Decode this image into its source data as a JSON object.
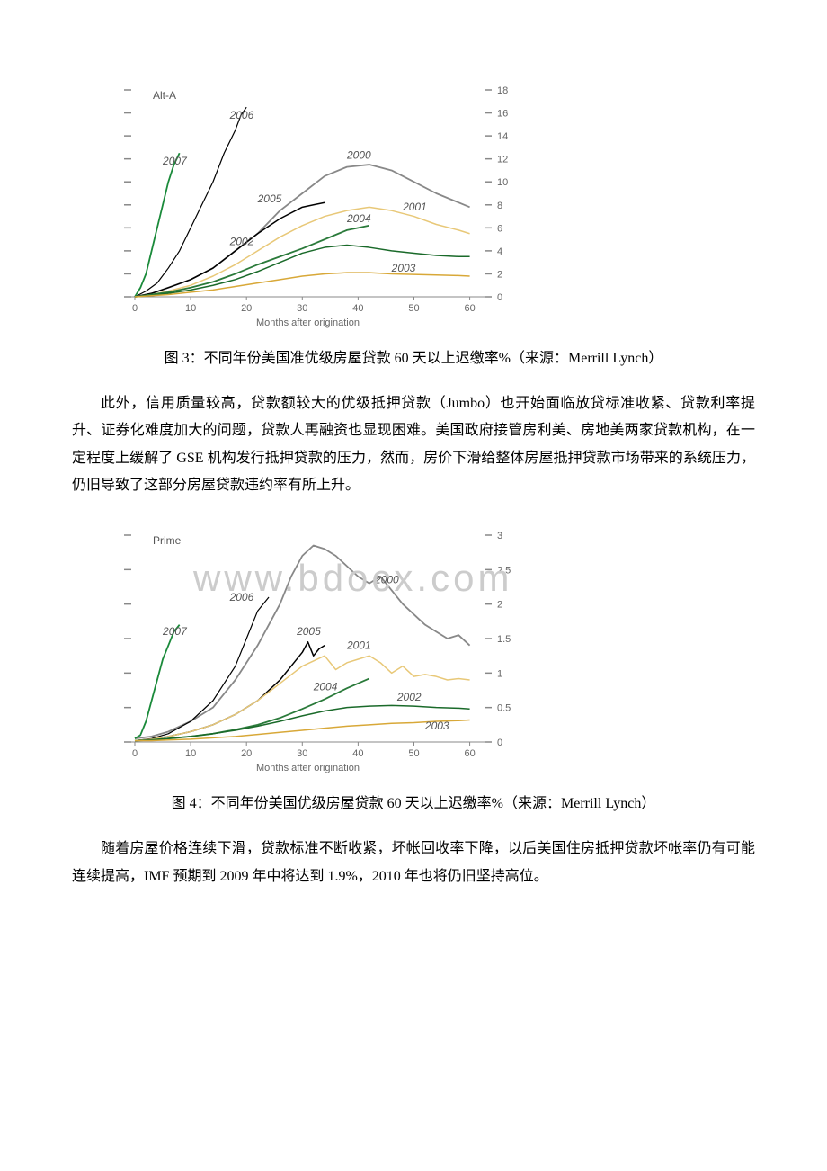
{
  "chart1": {
    "type": "line",
    "title": "Alt-A",
    "xlabel": "Months after origination",
    "xlim": [
      0,
      62
    ],
    "xticks": [
      0,
      10,
      20,
      30,
      40,
      50,
      60
    ],
    "ylim": [
      0,
      18
    ],
    "yticks": [
      0,
      2,
      4,
      6,
      8,
      10,
      12,
      14,
      16,
      18
    ],
    "background_color": "#ffffff",
    "axis_color": "#888888",
    "text_color": "#666666",
    "title_fontsize": 12,
    "label_fontsize": 11,
    "tick_fontsize": 11,
    "series": [
      {
        "label": "2006",
        "label_pos": {
          "x": 17,
          "y": 15.5
        },
        "color": "#000000",
        "width": 1.2,
        "points": [
          [
            0,
            0
          ],
          [
            2,
            0.5
          ],
          [
            4,
            1.2
          ],
          [
            6,
            2.5
          ],
          [
            8,
            4
          ],
          [
            10,
            6
          ],
          [
            12,
            8
          ],
          [
            14,
            10
          ],
          [
            16,
            12.5
          ],
          [
            18,
            14.5
          ],
          [
            19,
            15.8
          ],
          [
            20,
            16.5
          ]
        ]
      },
      {
        "label": "2007",
        "label_pos": {
          "x": 5,
          "y": 11.5
        },
        "color": "#1a8a3a",
        "width": 1.8,
        "points": [
          [
            0,
            0
          ],
          [
            1,
            0.8
          ],
          [
            2,
            2
          ],
          [
            3,
            4
          ],
          [
            4,
            6
          ],
          [
            5,
            8
          ],
          [
            6,
            10
          ],
          [
            7,
            11.5
          ],
          [
            8,
            12.5
          ]
        ]
      },
      {
        "label": "2000",
        "label_pos": {
          "x": 38,
          "y": 12
        },
        "color": "#888888",
        "width": 1.8,
        "points": [
          [
            0,
            0
          ],
          [
            3,
            0.3
          ],
          [
            6,
            0.8
          ],
          [
            10,
            1.5
          ],
          [
            14,
            2.5
          ],
          [
            18,
            4
          ],
          [
            22,
            5.5
          ],
          [
            26,
            7.5
          ],
          [
            30,
            9
          ],
          [
            34,
            10.5
          ],
          [
            38,
            11.3
          ],
          [
            42,
            11.5
          ],
          [
            46,
            11
          ],
          [
            50,
            10
          ],
          [
            54,
            9
          ],
          [
            58,
            8.2
          ],
          [
            60,
            7.8
          ]
        ]
      },
      {
        "label": "2005",
        "label_pos": {
          "x": 22,
          "y": 8.2
        },
        "color": "#000000",
        "width": 1.5,
        "points": [
          [
            0,
            0
          ],
          [
            3,
            0.3
          ],
          [
            6,
            0.8
          ],
          [
            10,
            1.5
          ],
          [
            14,
            2.5
          ],
          [
            18,
            4
          ],
          [
            22,
            5.5
          ],
          [
            26,
            6.8
          ],
          [
            30,
            7.8
          ],
          [
            32,
            8
          ],
          [
            34,
            8.2
          ]
        ]
      },
      {
        "label": "2001",
        "label_pos": {
          "x": 48,
          "y": 7.5
        },
        "color": "#e8c878",
        "width": 1.5,
        "points": [
          [
            0,
            0
          ],
          [
            3,
            0.2
          ],
          [
            6,
            0.5
          ],
          [
            10,
            1
          ],
          [
            14,
            1.8
          ],
          [
            18,
            2.8
          ],
          [
            22,
            4
          ],
          [
            26,
            5.2
          ],
          [
            30,
            6.2
          ],
          [
            34,
            7
          ],
          [
            38,
            7.5
          ],
          [
            42,
            7.8
          ],
          [
            46,
            7.5
          ],
          [
            50,
            7
          ],
          [
            54,
            6.3
          ],
          [
            58,
            5.8
          ],
          [
            60,
            5.5
          ]
        ]
      },
      {
        "label": "2004",
        "label_pos": {
          "x": 38,
          "y": 6.5
        },
        "color": "#2a7a3a",
        "width": 1.8,
        "points": [
          [
            0,
            0
          ],
          [
            3,
            0.2
          ],
          [
            6,
            0.4
          ],
          [
            10,
            0.8
          ],
          [
            14,
            1.3
          ],
          [
            18,
            2
          ],
          [
            22,
            2.8
          ],
          [
            26,
            3.5
          ],
          [
            30,
            4.2
          ],
          [
            34,
            5
          ],
          [
            38,
            5.8
          ],
          [
            40,
            6
          ],
          [
            42,
            6.2
          ]
        ]
      },
      {
        "label": "2002",
        "label_pos": {
          "x": 17,
          "y": 4.5
        },
        "color": "#1a6a2a",
        "width": 1.5,
        "points": [
          [
            0,
            0
          ],
          [
            3,
            0.1
          ],
          [
            6,
            0.3
          ],
          [
            10,
            0.6
          ],
          [
            14,
            1
          ],
          [
            18,
            1.5
          ],
          [
            22,
            2.2
          ],
          [
            26,
            3
          ],
          [
            30,
            3.8
          ],
          [
            34,
            4.3
          ],
          [
            38,
            4.5
          ],
          [
            42,
            4.3
          ],
          [
            46,
            4
          ],
          [
            50,
            3.8
          ],
          [
            54,
            3.6
          ],
          [
            58,
            3.5
          ],
          [
            60,
            3.5
          ]
        ]
      },
      {
        "label": "2003",
        "label_pos": {
          "x": 46,
          "y": 2.2
        },
        "color": "#d8a838",
        "width": 1.5,
        "points": [
          [
            0,
            0
          ],
          [
            3,
            0.1
          ],
          [
            6,
            0.2
          ],
          [
            10,
            0.4
          ],
          [
            14,
            0.6
          ],
          [
            18,
            0.9
          ],
          [
            22,
            1.2
          ],
          [
            26,
            1.5
          ],
          [
            30,
            1.8
          ],
          [
            34,
            2
          ],
          [
            38,
            2.1
          ],
          [
            42,
            2.1
          ],
          [
            46,
            2
          ],
          [
            50,
            1.95
          ],
          [
            54,
            1.9
          ],
          [
            58,
            1.85
          ],
          [
            60,
            1.8
          ]
        ]
      }
    ]
  },
  "caption1": "图 3：不同年份美国准优级房屋贷款 60 天以上迟缴率%（来源：Merrill Lynch）",
  "paragraph1": "此外，信用质量较高，贷款额较大的优级抵押贷款（Jumbo）也开始面临放贷标准收紧、贷款利率提升、证券化难度加大的问题，贷款人再融资也显现困难。美国政府接管房利美、房地美两家贷款机构，在一定程度上缓解了 GSE 机构发行抵押贷款的压力，然而，房价下滑给整体房屋抵押贷款市场带来的系统压力，仍旧导致了这部分房屋贷款违约率有所上升。",
  "chart2": {
    "type": "line",
    "title": "Prime",
    "xlabel": "Months after origination",
    "xlim": [
      0,
      62
    ],
    "xticks": [
      0,
      10,
      20,
      30,
      40,
      50,
      60
    ],
    "ylim": [
      0,
      3.0
    ],
    "yticks": [
      0,
      0.5,
      1.0,
      1.5,
      2.0,
      2.5,
      3.0
    ],
    "background_color": "#ffffff",
    "axis_color": "#888888",
    "text_color": "#666666",
    "title_fontsize": 12,
    "label_fontsize": 11,
    "tick_fontsize": 11,
    "watermark": "www.bdocx.com",
    "series": [
      {
        "label": "2000",
        "label_pos": {
          "x": 43,
          "y": 2.3
        },
        "color": "#888888",
        "width": 1.8,
        "points": [
          [
            0,
            0.05
          ],
          [
            3,
            0.08
          ],
          [
            6,
            0.15
          ],
          [
            10,
            0.3
          ],
          [
            14,
            0.5
          ],
          [
            18,
            0.9
          ],
          [
            22,
            1.4
          ],
          [
            26,
            2.0
          ],
          [
            28,
            2.4
          ],
          [
            30,
            2.7
          ],
          [
            32,
            2.85
          ],
          [
            34,
            2.8
          ],
          [
            36,
            2.7
          ],
          [
            38,
            2.55
          ],
          [
            40,
            2.4
          ],
          [
            42,
            2.3
          ],
          [
            44,
            2.4
          ],
          [
            46,
            2.2
          ],
          [
            48,
            2.0
          ],
          [
            50,
            1.85
          ],
          [
            52,
            1.7
          ],
          [
            54,
            1.6
          ],
          [
            56,
            1.5
          ],
          [
            58,
            1.55
          ],
          [
            60,
            1.4
          ]
        ]
      },
      {
        "label": "2006",
        "label_pos": {
          "x": 17,
          "y": 2.05
        },
        "color": "#000000",
        "width": 1.2,
        "points": [
          [
            0,
            0.02
          ],
          [
            3,
            0.05
          ],
          [
            6,
            0.12
          ],
          [
            10,
            0.3
          ],
          [
            14,
            0.6
          ],
          [
            18,
            1.1
          ],
          [
            20,
            1.5
          ],
          [
            22,
            1.9
          ],
          [
            24,
            2.1
          ]
        ]
      },
      {
        "label": "2007",
        "label_pos": {
          "x": 5,
          "y": 1.55
        },
        "color": "#1a8a3a",
        "width": 1.8,
        "points": [
          [
            0,
            0.05
          ],
          [
            1,
            0.1
          ],
          [
            2,
            0.3
          ],
          [
            3,
            0.6
          ],
          [
            4,
            0.9
          ],
          [
            5,
            1.2
          ],
          [
            6,
            1.4
          ],
          [
            7,
            1.6
          ],
          [
            8,
            1.7
          ]
        ]
      },
      {
        "label": "2005",
        "label_pos": {
          "x": 29,
          "y": 1.55
        },
        "color": "#000000",
        "width": 1.5,
        "points": [
          [
            0,
            0.02
          ],
          [
            3,
            0.04
          ],
          [
            6,
            0.08
          ],
          [
            10,
            0.15
          ],
          [
            14,
            0.25
          ],
          [
            18,
            0.4
          ],
          [
            22,
            0.6
          ],
          [
            26,
            0.9
          ],
          [
            28,
            1.1
          ],
          [
            30,
            1.3
          ],
          [
            31,
            1.45
          ],
          [
            32,
            1.25
          ],
          [
            33,
            1.35
          ],
          [
            34,
            1.4
          ]
        ]
      },
      {
        "label": "2001",
        "label_pos": {
          "x": 38,
          "y": 1.35
        },
        "color": "#e8c878",
        "width": 1.5,
        "points": [
          [
            0,
            0.02
          ],
          [
            3,
            0.04
          ],
          [
            6,
            0.08
          ],
          [
            10,
            0.15
          ],
          [
            14,
            0.25
          ],
          [
            18,
            0.4
          ],
          [
            22,
            0.6
          ],
          [
            26,
            0.85
          ],
          [
            30,
            1.1
          ],
          [
            34,
            1.25
          ],
          [
            36,
            1.05
          ],
          [
            38,
            1.15
          ],
          [
            40,
            1.2
          ],
          [
            42,
            1.25
          ],
          [
            44,
            1.15
          ],
          [
            46,
            1.0
          ],
          [
            48,
            1.1
          ],
          [
            50,
            0.95
          ],
          [
            52,
            0.98
          ],
          [
            54,
            0.95
          ],
          [
            56,
            0.9
          ],
          [
            58,
            0.92
          ],
          [
            60,
            0.9
          ]
        ]
      },
      {
        "label": "2004",
        "label_pos": {
          "x": 32,
          "y": 0.75
        },
        "color": "#2a7a3a",
        "width": 1.8,
        "points": [
          [
            0,
            0.02
          ],
          [
            3,
            0.03
          ],
          [
            6,
            0.05
          ],
          [
            10,
            0.08
          ],
          [
            14,
            0.12
          ],
          [
            18,
            0.18
          ],
          [
            22,
            0.25
          ],
          [
            26,
            0.35
          ],
          [
            30,
            0.48
          ],
          [
            34,
            0.62
          ],
          [
            38,
            0.78
          ],
          [
            40,
            0.85
          ],
          [
            42,
            0.92
          ]
        ]
      },
      {
        "label": "2002",
        "label_pos": {
          "x": 47,
          "y": 0.6
        },
        "color": "#1a6a2a",
        "width": 1.5,
        "points": [
          [
            0,
            0.02
          ],
          [
            3,
            0.03
          ],
          [
            6,
            0.05
          ],
          [
            10,
            0.08
          ],
          [
            14,
            0.12
          ],
          [
            18,
            0.17
          ],
          [
            22,
            0.23
          ],
          [
            26,
            0.3
          ],
          [
            30,
            0.38
          ],
          [
            34,
            0.45
          ],
          [
            38,
            0.5
          ],
          [
            42,
            0.52
          ],
          [
            46,
            0.53
          ],
          [
            50,
            0.52
          ],
          [
            54,
            0.5
          ],
          [
            58,
            0.49
          ],
          [
            60,
            0.48
          ]
        ]
      },
      {
        "label": "2003",
        "label_pos": {
          "x": 52,
          "y": 0.18
        },
        "color": "#d8a838",
        "width": 1.5,
        "points": [
          [
            0,
            0.02
          ],
          [
            3,
            0.02
          ],
          [
            6,
            0.03
          ],
          [
            10,
            0.04
          ],
          [
            14,
            0.06
          ],
          [
            18,
            0.08
          ],
          [
            22,
            0.11
          ],
          [
            26,
            0.14
          ],
          [
            30,
            0.17
          ],
          [
            34,
            0.2
          ],
          [
            38,
            0.23
          ],
          [
            42,
            0.25
          ],
          [
            46,
            0.27
          ],
          [
            50,
            0.28
          ],
          [
            54,
            0.3
          ],
          [
            58,
            0.31
          ],
          [
            60,
            0.32
          ]
        ]
      }
    ]
  },
  "caption2": "图 4：不同年份美国优级房屋贷款 60 天以上迟缴率%（来源：Merrill Lynch）",
  "paragraph2": "随着房屋价格连续下滑，贷款标准不断收紧，坏帐回收率下降，以后美国住房抵押贷款坏帐率仍有可能连续提高，IMF 预期到 2009 年中将达到 1.9%，2010 年也将仍旧坚持高位。"
}
